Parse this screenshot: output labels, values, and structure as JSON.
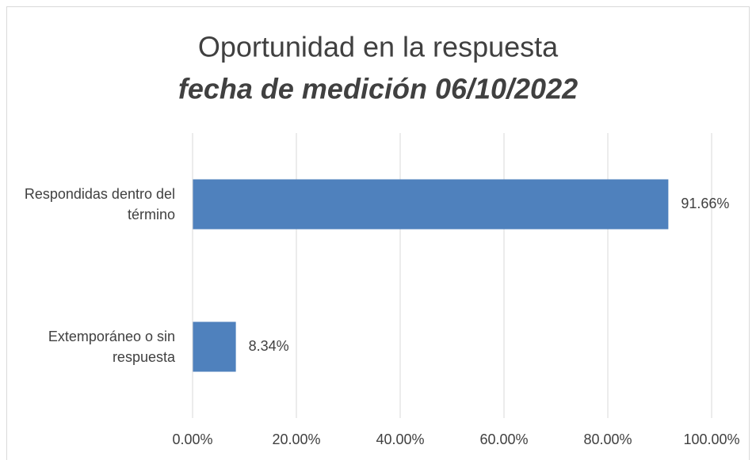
{
  "chart_data": {
    "type": "bar",
    "orientation": "horizontal",
    "title": "Oportunidad en la respuesta",
    "subtitle": "fecha de medición 06/10/2022",
    "categories": [
      "Respondidas dentro del término",
      "Extemporáneo o sin respuesta"
    ],
    "values": [
      91.66,
      8.34
    ],
    "value_labels": [
      "91.66%",
      "8.34%"
    ],
    "color": "#4f81bd",
    "xlim": [
      0,
      100
    ],
    "xticks": [
      {
        "value": 0,
        "label": "0.00%"
      },
      {
        "value": 20,
        "label": "20.00%"
      },
      {
        "value": 40,
        "label": "40.00%"
      },
      {
        "value": 60,
        "label": "60.00%"
      },
      {
        "value": 80,
        "label": "80.00%"
      },
      {
        "value": 100,
        "label": "100.00%"
      }
    ],
    "grid": true
  }
}
